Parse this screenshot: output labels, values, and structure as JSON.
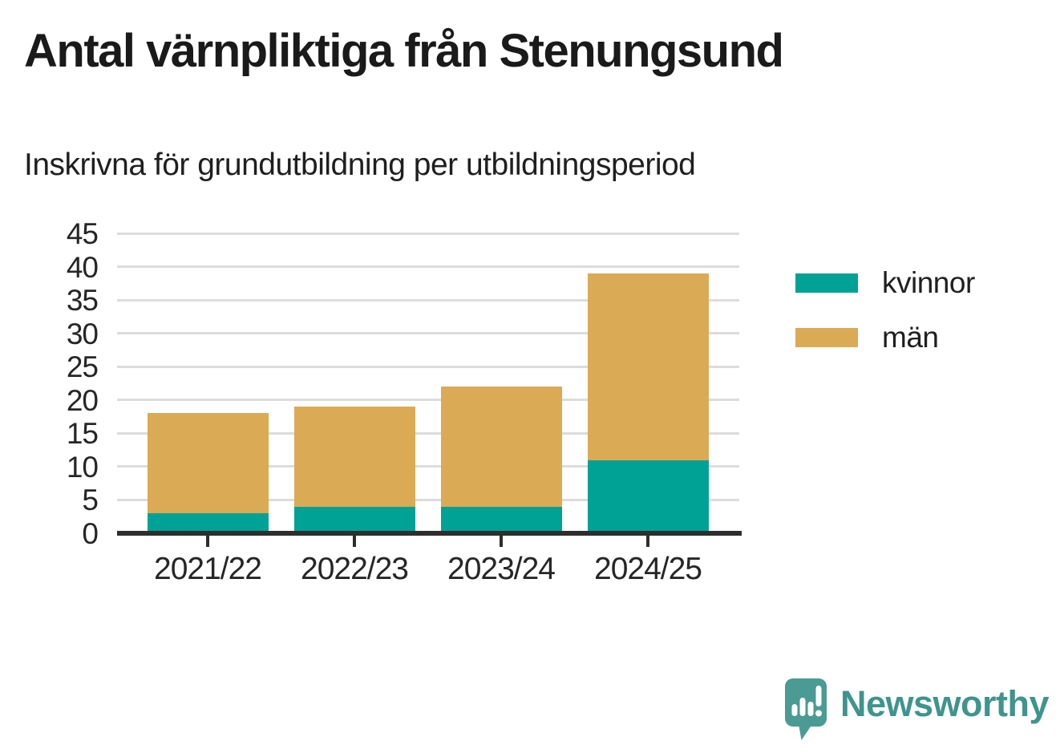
{
  "header": {
    "title": "Antal värnpliktiga från Stenungsund",
    "subtitle": "Inskrivna för grundutbildning per utbildningsperiod"
  },
  "chart_data": {
    "type": "bar",
    "stacked": true,
    "title": "Antal värnpliktiga från Stenungsund",
    "subtitle": "Inskrivna för grundutbildning per utbildningsperiod",
    "categories": [
      "2021/22",
      "2022/23",
      "2023/24",
      "2024/25"
    ],
    "series": [
      {
        "name": "kvinnor",
        "color": "#00a296",
        "values": [
          3,
          4,
          4,
          11
        ]
      },
      {
        "name": "män",
        "color": "#dbaa54",
        "values": [
          15,
          15,
          18,
          28
        ]
      }
    ],
    "totals": [
      18,
      19,
      22,
      39
    ],
    "xlabel": "",
    "ylabel": "",
    "ylim": [
      0,
      45
    ],
    "yticks": [
      0,
      5,
      10,
      15,
      20,
      25,
      30,
      35,
      40,
      45
    ],
    "grid": true,
    "legend_position": "right"
  },
  "colors": {
    "kvinnor": "#00a296",
    "man": "#dbaa54",
    "gridline": "#dcdcdc",
    "axis": "#2e2e2e",
    "text": "#1f1f1f",
    "brand_icon": "#4a9b94",
    "brand_text": "#3f948d"
  },
  "footer": {
    "brand": "Newsworthy"
  }
}
